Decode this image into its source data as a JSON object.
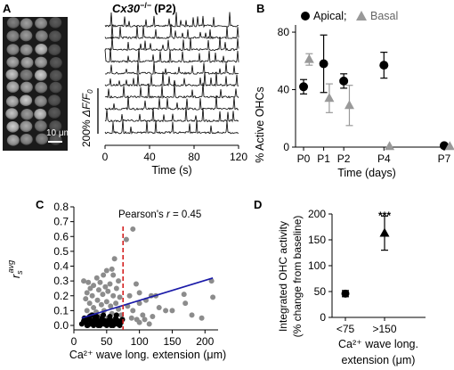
{
  "panels": {
    "A": {
      "letter": "A",
      "scale_bar_label": "10 μm",
      "title_gene": "Cx30",
      "title_sup": "−/−",
      "title_stage": "(P2)",
      "dff_label_prefix": "200% ",
      "dff_label_main": "ΔF/F",
      "dff_label_sub": "0",
      "num_traces": 10
    },
    "B": {
      "letter": "B",
      "legend_apical": "Apical;",
      "legend_basal": "Basal",
      "ylabel": "% Active OHCs",
      "xlabel": "Time (days)"
    },
    "C": {
      "letter": "C",
      "annotation_prefix": "Pearson's ",
      "annotation_r": "r",
      "annotation_value": " = 0.45",
      "ylabel_main": "r",
      "ylabel_sub": "s",
      "ylabel_sup": "avg",
      "xlabel": "Ca²⁺ wave long. extension (μm)"
    },
    "D": {
      "letter": "D",
      "ylabel_line1": "Integrated OHC activity",
      "ylabel_line2": "(% change from baseline)",
      "xlabel_line1": "Ca²⁺ wave long.",
      "xlabel_line2": "extension (μm)",
      "significance": "***"
    }
  },
  "colors": {
    "apical": "#000000",
    "basal": "#999999",
    "fit_line": "#1a1aa8",
    "threshold": "#d42020",
    "scatter_gray": "#8c8c8c"
  },
  "chart_data": [
    {
      "id": "A-traces",
      "type": "line",
      "xlabel": "Time (s)",
      "xlim": [
        0,
        120
      ],
      "xticks": [
        0,
        40,
        80,
        120
      ]
    },
    {
      "id": "B",
      "type": "scatter",
      "xlabel": "Time (days)",
      "ylabel": "% Active OHCs",
      "xlim": [
        -0.4,
        7.4
      ],
      "ylim": [
        0,
        85
      ],
      "yticks": [
        0,
        40,
        80
      ],
      "xticks": [
        0,
        1,
        2,
        4,
        7
      ],
      "xticklabels": [
        "P0",
        "P1",
        "P2",
        "P4",
        "P7"
      ],
      "series": [
        {
          "name": "Apical",
          "marker": "circle",
          "points": [
            {
              "x": 0,
              "y": 42,
              "err": 5
            },
            {
              "x": 1,
              "y": 58,
              "err": 20
            },
            {
              "x": 2,
              "y": 46,
              "err": 5
            },
            {
              "x": 4,
              "y": 57,
              "err": 9
            },
            {
              "x": 7,
              "y": 1,
              "err": 1
            }
          ]
        },
        {
          "name": "Basal",
          "marker": "triangle",
          "points": [
            {
              "x": 0.28,
              "y": 61,
              "err": 4
            },
            {
              "x": 1.28,
              "y": 34,
              "err": 10
            },
            {
              "x": 2.28,
              "y": 29,
              "err": 14
            },
            {
              "x": 4.28,
              "y": 0.5,
              "err": 0.5
            },
            {
              "x": 7.28,
              "y": 0.5,
              "err": 0.5
            }
          ]
        }
      ]
    },
    {
      "id": "C",
      "type": "scatter",
      "xlabel": "Ca²⁺ wave long. extension (μm)",
      "ylabel": "r_s^avg",
      "xlim": [
        0,
        220
      ],
      "ylim": [
        -0.03,
        0.8
      ],
      "xticks": [
        0,
        50,
        100,
        150,
        200
      ],
      "yticks": [
        0,
        0.1,
        0.2,
        0.3,
        0.4,
        0.5,
        0.6,
        0.7,
        0.8
      ],
      "threshold_x": 75,
      "fit": {
        "x": [
          12,
          212
        ],
        "y": [
          0.05,
          0.32
        ]
      },
      "annotation": "Pearson's r = 0.45",
      "series": [
        {
          "color": "gray",
          "points": [
            [
              90,
              0.65
            ],
            [
              80,
              0.58
            ],
            [
              62,
              0.45
            ],
            [
              58,
              0.38
            ],
            [
              50,
              0.37
            ],
            [
              45,
              0.34
            ],
            [
              60,
              0.34
            ],
            [
              35,
              0.32
            ],
            [
              68,
              0.3
            ],
            [
              15,
              0.3
            ],
            [
              22,
              0.29
            ],
            [
              40,
              0.29
            ],
            [
              55,
              0.28
            ],
            [
              30,
              0.27
            ],
            [
              48,
              0.26
            ],
            [
              25,
              0.25
            ],
            [
              65,
              0.25
            ],
            [
              38,
              0.24
            ],
            [
              52,
              0.23
            ],
            [
              20,
              0.22
            ],
            [
              44,
              0.21
            ],
            [
              60,
              0.2
            ],
            [
              28,
              0.2
            ],
            [
              70,
              0.19
            ],
            [
              18,
              0.18
            ],
            [
              36,
              0.17
            ],
            [
              50,
              0.16
            ],
            [
              64,
              0.15
            ],
            [
              24,
              0.15
            ],
            [
              42,
              0.14
            ],
            [
              56,
              0.13
            ],
            [
              30,
              0.12
            ],
            [
              68,
              0.11
            ],
            [
              46,
              0.1
            ],
            [
              20,
              0.1
            ],
            [
              34,
              0.09
            ],
            [
              58,
              0.08
            ],
            [
              72,
              0.07
            ],
            [
              26,
              0.07
            ],
            [
              40,
              0.06
            ],
            [
              52,
              0.05
            ],
            [
              62,
              0.04
            ],
            [
              16,
              0.04
            ],
            [
              48,
              0.03
            ],
            [
              32,
              0.02
            ],
            [
              95,
              0.28
            ],
            [
              100,
              0.22
            ],
            [
              110,
              0.17
            ],
            [
              90,
              0.1
            ],
            [
              105,
              0.07
            ],
            [
              120,
              0.06
            ],
            [
              118,
              0.2
            ],
            [
              100,
              0.15
            ],
            [
              96,
              0.04
            ],
            [
              125,
              0.2
            ],
            [
              85,
              0.2
            ],
            [
              82,
              0.13
            ],
            [
              130,
              0.12
            ],
            [
              140,
              0.1
            ],
            [
              168,
              0.21
            ],
            [
              150,
              0.1
            ],
            [
              170,
              0.15
            ],
            [
              180,
              0.07
            ],
            [
              195,
              0.05
            ],
            [
              210,
              0.3
            ],
            [
              212,
              0.19
            ],
            [
              115,
              0.01
            ],
            [
              108,
              0.04
            ],
            [
              88,
              0.05
            ],
            [
              100,
              0.02
            ]
          ]
        },
        {
          "color": "black",
          "points": [
            [
              12,
              0.01
            ],
            [
              15,
              0.03
            ],
            [
              18,
              0.02
            ],
            [
              20,
              0.0
            ],
            [
              22,
              0.04
            ],
            [
              25,
              0.01
            ],
            [
              27,
              0.03
            ],
            [
              30,
              0.0
            ],
            [
              32,
              0.02
            ],
            [
              34,
              0.05
            ],
            [
              36,
              0.01
            ],
            [
              38,
              0.03
            ],
            [
              40,
              0.0
            ],
            [
              42,
              0.02
            ],
            [
              44,
              0.04
            ],
            [
              46,
              0.01
            ],
            [
              48,
              0.03
            ],
            [
              50,
              0.0
            ],
            [
              52,
              0.02
            ],
            [
              54,
              0.04
            ],
            [
              56,
              0.01
            ],
            [
              58,
              0.03
            ],
            [
              60,
              0.0
            ],
            [
              62,
              0.02
            ],
            [
              64,
              0.05
            ],
            [
              66,
              0.01
            ],
            [
              68,
              0.03
            ],
            [
              70,
              0.0
            ],
            [
              72,
              0.02
            ],
            [
              74,
              0.04
            ],
            [
              16,
              0.05
            ],
            [
              24,
              0.06
            ],
            [
              28,
              0.07
            ],
            [
              35,
              0.06
            ],
            [
              45,
              0.07
            ],
            [
              55,
              0.06
            ],
            [
              65,
              0.07
            ],
            [
              21,
              0.0
            ],
            [
              29,
              0.01
            ],
            [
              37,
              0.0
            ],
            [
              47,
              0.01
            ],
            [
              57,
              0.0
            ],
            [
              67,
              0.01
            ],
            [
              43,
              0.05
            ],
            [
              31,
              0.04
            ]
          ]
        }
      ]
    },
    {
      "id": "D",
      "type": "scatter",
      "ylabel": "Integrated OHC activity (% change from baseline)",
      "xlabel": "Ca²⁺ wave long. extension (μm)",
      "ylim": [
        0,
        200
      ],
      "yticks": [
        0,
        50,
        100,
        150,
        200
      ],
      "categories": [
        "<75",
        ">150"
      ],
      "series": [
        {
          "points": [
            {
              "category": "<75",
              "y": 46,
              "err": 6,
              "marker": "circle"
            },
            {
              "category": ">150",
              "y": 163,
              "err": 33,
              "marker": "triangle"
            }
          ]
        }
      ],
      "significance": "***"
    }
  ]
}
